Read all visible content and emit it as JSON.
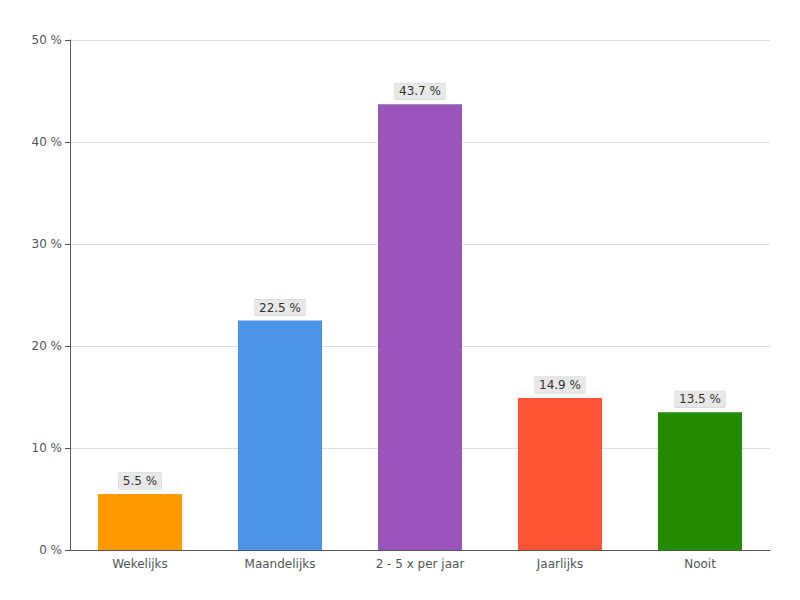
{
  "chart_data": {
    "type": "bar",
    "categories": [
      "Wekelijks",
      "Maandelijks",
      "2 - 5 x per jaar",
      "Jaarlijks",
      "Nooit"
    ],
    "values": [
      5.5,
      22.5,
      43.7,
      14.9,
      13.5
    ],
    "value_labels": [
      "5.5 %",
      "22.5 %",
      "43.7 %",
      "14.9 %",
      "13.5 %"
    ],
    "colors": [
      "#FF9900",
      "#4D94E8",
      "#9955BB",
      "#FF5533",
      "#228B00"
    ],
    "ylim": [
      0,
      50
    ],
    "yticks": [
      {
        "value": 0,
        "label": "0 %"
      },
      {
        "value": 10,
        "label": "10 %"
      },
      {
        "value": 20,
        "label": "20 %"
      },
      {
        "value": 30,
        "label": "30 %"
      },
      {
        "value": 40,
        "label": "40 %"
      },
      {
        "value": 50,
        "label": "50 %"
      }
    ],
    "grid": true,
    "data_labels": true
  }
}
